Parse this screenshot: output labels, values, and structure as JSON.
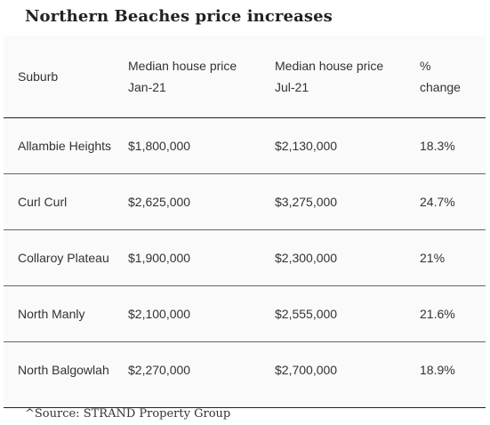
{
  "title": "Northern Beaches price increases",
  "table": {
    "headers": [
      {
        "line1": "Suburb",
        "line2": ""
      },
      {
        "line1": "Median house price",
        "line2": "Jan-21"
      },
      {
        "line1": "Median house price",
        "line2": "Jul-21"
      },
      {
        "line1": "%",
        "line2": "change"
      }
    ],
    "rows": [
      {
        "suburb": "Allambie Heights",
        "jan21": "$1,800,000",
        "jul21": "$2,130,000",
        "change": "18.3%"
      },
      {
        "suburb": "Curl Curl",
        "jan21": "$2,625,000",
        "jul21": "$3,275,000",
        "change": "24.7%"
      },
      {
        "suburb": "Collaroy Plateau",
        "jan21": "$1,900,000",
        "jul21": "$2,300,000",
        "change": "21%"
      },
      {
        "suburb": "North Manly",
        "jan21": "$2,100,000",
        "jul21": "$2,555,000",
        "change": "21.6%"
      },
      {
        "suburb": "North Balgowlah",
        "jan21": "$2,270,000",
        "jul21": "$2,700,000",
        "change": "18.9%"
      }
    ]
  },
  "source": "^Source: STRAND Property Group"
}
